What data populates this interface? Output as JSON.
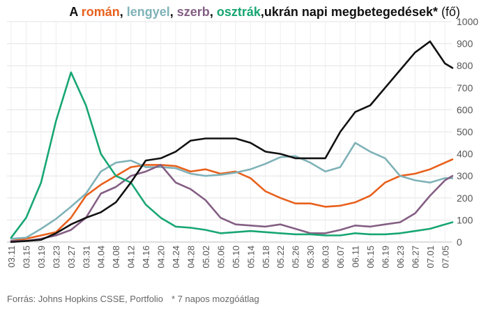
{
  "title": {
    "prefix": "A",
    "countries": [
      {
        "name": "román",
        "color": "#e8601c"
      },
      {
        "name": "lengyel",
        "color": "#7fb2b8"
      },
      {
        "name": "szerb",
        "color": "#845f84"
      },
      {
        "name": "osztrák",
        "color": "#17a673"
      },
      {
        "name": "ukrán",
        "color": "#111111"
      }
    ],
    "text_rest": " napi megbetegedések*",
    "unit": " (fő)"
  },
  "footer": {
    "source": "Forrás: Johns Hopkins CSSE, Portfolio",
    "note": "* 7 napos mozgóátlag"
  },
  "chart_data": {
    "type": "line",
    "title": "A román, lengyel, szerb, osztrák, ukrán napi megbetegedések* (fő)",
    "x_tick_labels": [
      "03.11",
      "03.15",
      "03.19",
      "03.23",
      "03.27",
      "03.31",
      "04.04",
      "04.08",
      "04.12",
      "04.16",
      "04.20",
      "04.24",
      "04.28",
      "05.02",
      "05.06",
      "05.10",
      "05.14",
      "05.18",
      "05.22",
      "05.26",
      "05.30",
      "06.03",
      "06.07",
      "06.11",
      "06.15",
      "06.19",
      "06.23",
      "06.27",
      "07.01",
      "07.05"
    ],
    "x": [
      "03.11",
      "03.15",
      "03.19",
      "03.23",
      "03.27",
      "03.31",
      "04.04",
      "04.08",
      "04.12",
      "04.16",
      "04.20",
      "04.24",
      "04.28",
      "05.02",
      "05.06",
      "05.10",
      "05.14",
      "05.18",
      "05.22",
      "05.26",
      "05.30",
      "06.03",
      "06.07",
      "06.11",
      "06.15",
      "06.19",
      "06.23",
      "06.27",
      "07.01",
      "07.05",
      "07.07"
    ],
    "ylim": [
      0,
      1000
    ],
    "yticks": [
      0,
      100,
      200,
      300,
      400,
      500,
      600,
      700,
      800,
      900,
      1000
    ],
    "y_axis_side": "right",
    "grid": true,
    "series": [
      {
        "name": "román",
        "color": "#e8601c",
        "values": [
          5,
          15,
          30,
          45,
          110,
          210,
          260,
          300,
          340,
          350,
          350,
          345,
          320,
          330,
          310,
          320,
          290,
          230,
          200,
          175,
          175,
          160,
          165,
          180,
          210,
          270,
          300,
          310,
          330,
          360,
          375
        ]
      },
      {
        "name": "lengyel",
        "color": "#7fb2b8",
        "values": [
          15,
          20,
          60,
          105,
          160,
          220,
          320,
          360,
          370,
          340,
          340,
          335,
          310,
          300,
          305,
          315,
          330,
          355,
          385,
          390,
          360,
          320,
          340,
          450,
          410,
          380,
          300,
          280,
          270,
          290,
          290
        ]
      },
      {
        "name": "szerb",
        "color": "#845f84",
        "values": [
          5,
          5,
          15,
          30,
          55,
          110,
          220,
          250,
          300,
          320,
          350,
          270,
          240,
          190,
          110,
          80,
          75,
          70,
          80,
          60,
          40,
          40,
          55,
          75,
          70,
          80,
          90,
          130,
          210,
          280,
          300
        ]
      },
      {
        "name": "osztrák",
        "color": "#17a673",
        "values": [
          20,
          110,
          270,
          550,
          770,
          620,
          400,
          300,
          270,
          170,
          110,
          70,
          65,
          55,
          40,
          45,
          50,
          45,
          40,
          35,
          35,
          30,
          30,
          40,
          35,
          35,
          40,
          50,
          60,
          80,
          90
        ]
      },
      {
        "name": "ukrán",
        "color": "#111111",
        "values": [
          0,
          5,
          10,
          40,
          80,
          110,
          135,
          180,
          270,
          370,
          380,
          410,
          460,
          470,
          470,
          470,
          450,
          410,
          400,
          380,
          380,
          380,
          500,
          590,
          620,
          700,
          780,
          860,
          910,
          810,
          790
        ]
      }
    ]
  }
}
